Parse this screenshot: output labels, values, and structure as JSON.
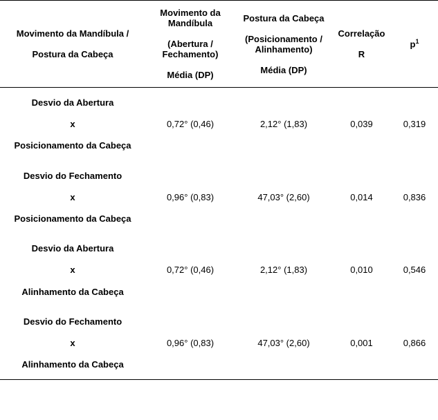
{
  "table": {
    "header": {
      "col1_line1": "Movimento da Mandíbula /",
      "col1_line2": "Postura da Cabeça",
      "col2_line1": "Movimento da",
      "col2_line2": "Mandíbula",
      "col2_line3": "(Abertura /",
      "col2_line4": "Fechamento)",
      "col2_line5": "Média (DP)",
      "col3_line1": "Postura da Cabeça",
      "col3_line2": "(Posicionamento /",
      "col3_line3": "Alinhamento)",
      "col3_line4": "Média (DP)",
      "col4_line1": "Correlação",
      "col4_line2": "R",
      "col5": "p",
      "col5_sup": "1"
    },
    "rows": [
      {
        "label_line1": "Desvio da Abertura",
        "label_line2": "x",
        "label_line3": "Posicionamento da Cabeça",
        "c2": "0,72° (0,46)",
        "c3": "2,12° (1,83)",
        "c4": "0,039",
        "c5": "0,319"
      },
      {
        "label_line1": "Desvio do Fechamento",
        "label_line2": "x",
        "label_line3": "Posicionamento da Cabeça",
        "c2": "0,96° (0,83)",
        "c3": "47,03° (2,60)",
        "c4": "0,014",
        "c5": "0,836"
      },
      {
        "label_line1": "Desvio da Abertura",
        "label_line2": "x",
        "label_line3": "Alinhamento da Cabeça",
        "c2": "0,72° (0,46)",
        "c3": "2,12° (1,83)",
        "c4": "0,010",
        "c5": "0,546"
      },
      {
        "label_line1": "Desvio do Fechamento",
        "label_line2": "x",
        "label_line3": "Alinhamento da Cabeça",
        "c2": "0,96° (0,83)",
        "c3": "47,03° (2,60)",
        "c4": "0,001",
        "c5": "0,866"
      }
    ]
  },
  "style": {
    "font_size_header": 13,
    "font_size_body": 13,
    "border_color": "#000000",
    "background_color": "#ffffff",
    "text_color": "#000000"
  }
}
